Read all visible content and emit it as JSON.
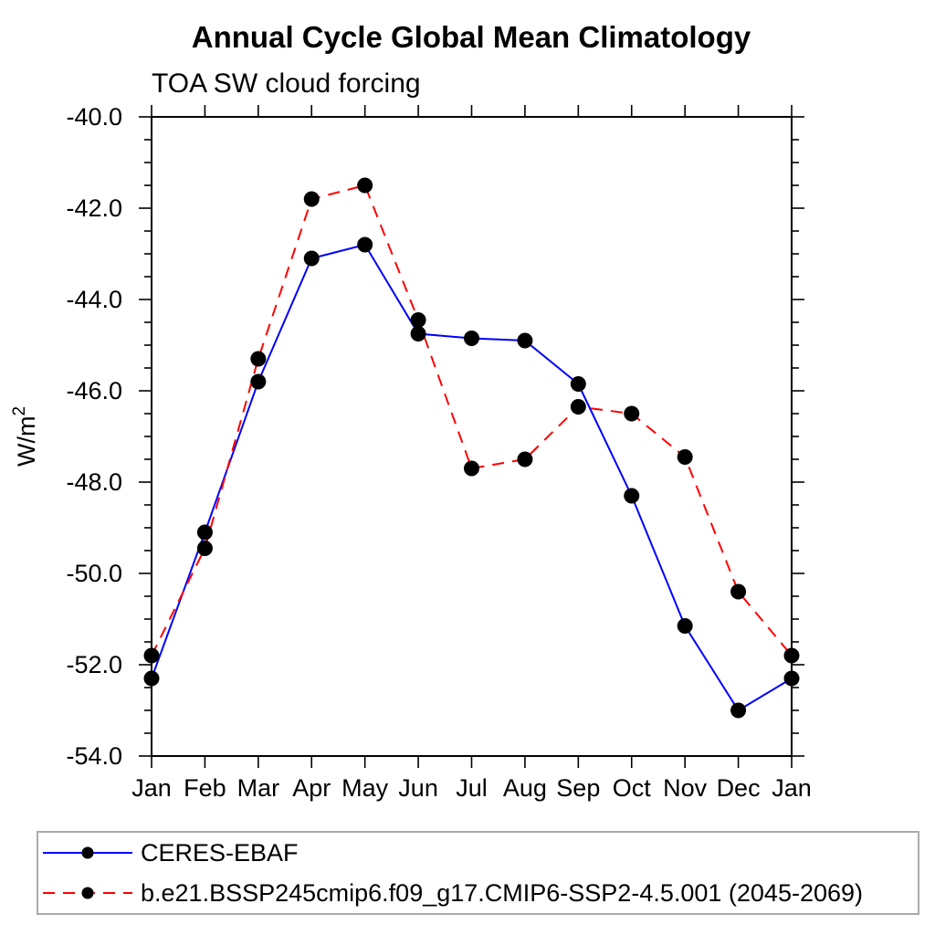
{
  "chart_data": {
    "type": "line",
    "title": "Annual Cycle Global Mean Climatology",
    "subtitle": "TOA SW cloud forcing",
    "ylabel_base": "W/m",
    "ylabel_sup": "2",
    "categories": [
      "Jan",
      "Feb",
      "Mar",
      "Apr",
      "May",
      "Jun",
      "Jul",
      "Aug",
      "Sep",
      "Oct",
      "Nov",
      "Dec",
      "Jan"
    ],
    "ylim": [
      -54.0,
      -40.0
    ],
    "ytick_step": 2.0,
    "yminor_step": 0.5,
    "ytick_labels": [
      "-40.0",
      "-42.0",
      "-44.0",
      "-46.0",
      "-48.0",
      "-50.0",
      "-52.0",
      "-54.0"
    ],
    "grid": false,
    "legend_position": "bottom",
    "marker_color": "#000000",
    "series": [
      {
        "name": "CERES-EBAF",
        "color": "#0000ff",
        "dash": "solid",
        "marker": "circle",
        "values": [
          -52.3,
          -49.1,
          -45.8,
          -43.1,
          -42.8,
          -44.75,
          -44.85,
          -44.9,
          -45.85,
          -48.3,
          -51.15,
          -53.0,
          -52.3
        ]
      },
      {
        "name": "b.e21.BSSP245cmip6.f09_g17.CMIP6-SSP2-4.5.001 (2045-2069)",
        "color": "#ff0000",
        "dash": "dashed",
        "marker": "circle",
        "values": [
          -51.8,
          -49.45,
          -45.3,
          -41.8,
          -41.5,
          -44.45,
          -47.7,
          -47.5,
          -46.35,
          -46.5,
          -47.45,
          -50.4,
          -51.8
        ]
      }
    ]
  }
}
